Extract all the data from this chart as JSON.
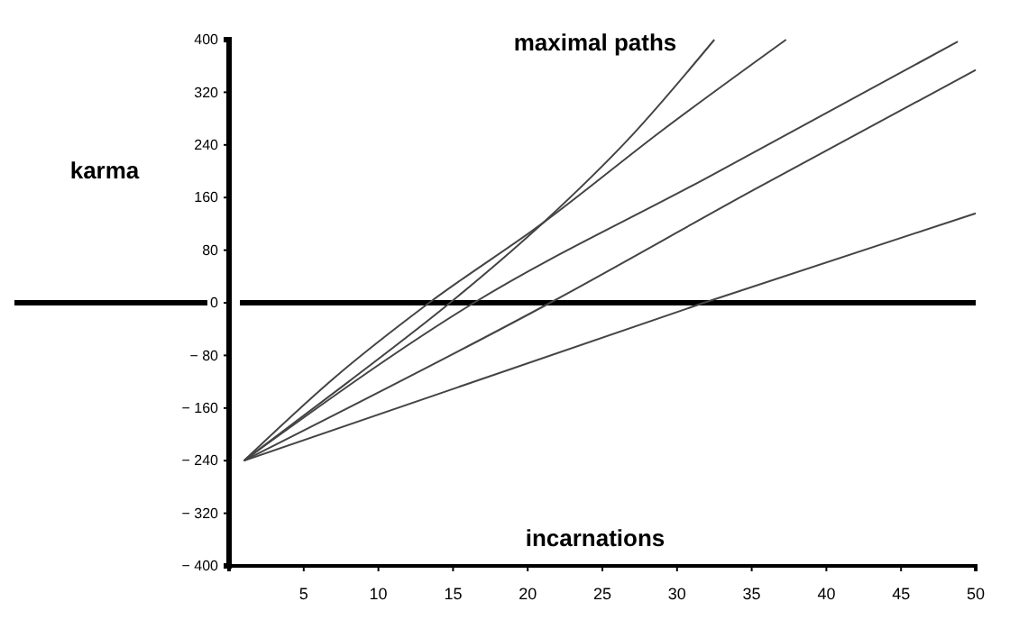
{
  "chart_data": {
    "type": "line",
    "title": "maximal paths",
    "xlabel": "incarnations",
    "ylabel": "karma",
    "xlim": [
      0,
      50
    ],
    "xticks": [
      5,
      10,
      15,
      20,
      25,
      30,
      35,
      40,
      45,
      50
    ],
    "ylim": [
      -400,
      400
    ],
    "yticks": [
      -400,
      -320,
      -240,
      -160,
      -80,
      0,
      80,
      160,
      240,
      320,
      400
    ],
    "grid": false,
    "marker": "none",
    "line_style": "solid",
    "ref_lines": [
      {
        "axis": "y",
        "value": 0,
        "color": "#000000"
      }
    ],
    "series": [
      {
        "color": "#444444",
        "x": [
          1,
          8,
          14.8,
          21,
          27,
          32.5
        ],
        "values": [
          -240,
          -120,
          0,
          121,
          255,
          400
        ]
      },
      {
        "color": "#444444",
        "x": [
          1,
          7,
          13.4,
          21,
          29,
          37.3
        ],
        "values": [
          -240,
          -115,
          0,
          121,
          262,
          400
        ]
      },
      {
        "color": "#444444",
        "x": [
          1,
          16.4,
          32,
          48.8
        ],
        "values": [
          -240,
          0,
          190,
          397
        ]
      },
      {
        "color": "#444444",
        "x": [
          1,
          21.5,
          35,
          50
        ],
        "values": [
          -240,
          0,
          170,
          354
        ]
      },
      {
        "color": "#444444",
        "x": [
          1,
          31.8,
          50
        ],
        "values": [
          -240,
          0,
          136
        ]
      }
    ]
  }
}
